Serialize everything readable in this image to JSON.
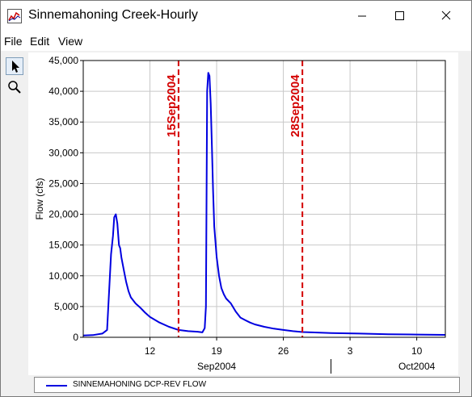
{
  "window": {
    "title": "Sinnemahoning Creek-Hourly",
    "menu": [
      "File",
      "Edit",
      "View"
    ]
  },
  "toolbar": {
    "tools": [
      "pointer-icon",
      "zoom-icon"
    ]
  },
  "legend": {
    "label": "SINNEMAHONING DCP-REV FLOW"
  },
  "chart_data": {
    "type": "line",
    "ylabel": "Flow (cfs)",
    "ylim": [
      0,
      45000
    ],
    "yticks": [
      0,
      5000,
      10000,
      15000,
      20000,
      25000,
      30000,
      35000,
      40000,
      45000
    ],
    "ytick_labels": [
      "0",
      "5,000",
      "10,000",
      "15,000",
      "20,000",
      "25,000",
      "30,000",
      "35,000",
      "40,000",
      "45,000"
    ],
    "x_start": "2004-09-05",
    "x_end": "2004-10-13",
    "xticks": [
      {
        "date": "2004-09-12",
        "label": "12"
      },
      {
        "date": "2004-09-19",
        "label": "19"
      },
      {
        "date": "2004-09-26",
        "label": "26"
      },
      {
        "date": "2004-10-03",
        "label": "3"
      },
      {
        "date": "2004-10-10",
        "label": "10"
      }
    ],
    "period_labels": [
      {
        "date": "2004-09-19",
        "label": "Sep2004"
      },
      {
        "date": "2004-10-10",
        "label": "Oct2004"
      }
    ],
    "period_divider": "2004-10-01",
    "markers": [
      {
        "date": "2004-09-15",
        "label": "15Sep2004",
        "color": "#d40000"
      },
      {
        "date": "2004-09-28",
        "label": "28Sep2004",
        "color": "#d40000"
      }
    ],
    "grid": true,
    "series": [
      {
        "name": "SINNEMAHONING DCP-REV FLOW",
        "color": "#0000e0",
        "x": [
          "2004-09-05 00:00",
          "2004-09-06 00:00",
          "2004-09-07 00:00",
          "2004-09-07 12:00",
          "2004-09-07 22:00",
          "2004-09-08 03:00",
          "2004-09-08 06:00",
          "2004-09-08 10:00",
          "2004-09-08 14:00",
          "2004-09-08 18:00",
          "2004-09-08 21:00",
          "2004-09-09 00:00",
          "2004-09-09 06:00",
          "2004-09-09 12:00",
          "2004-09-09 18:00",
          "2004-09-10 00:00",
          "2004-09-10 12:00",
          "2004-09-11 00:00",
          "2004-09-11 12:00",
          "2004-09-12 00:00",
          "2004-09-13 00:00",
          "2004-09-14 00:00",
          "2004-09-15 00:00",
          "2004-09-16 00:00",
          "2004-09-17 00:00",
          "2004-09-17 12:00",
          "2004-09-17 18:00",
          "2004-09-17 21:00",
          "2004-09-18 00:00",
          "2004-09-18 03:00",
          "2004-09-18 06:00",
          "2004-09-18 09:00",
          "2004-09-18 12:00",
          "2004-09-18 15:00",
          "2004-09-18 18:00",
          "2004-09-19 00:00",
          "2004-09-19 06:00",
          "2004-09-19 12:00",
          "2004-09-19 18:00",
          "2004-09-20 00:00",
          "2004-09-20 12:00",
          "2004-09-21 00:00",
          "2004-09-21 12:00",
          "2004-09-22 00:00",
          "2004-09-22 12:00",
          "2004-09-23 00:00",
          "2004-09-24 00:00",
          "2004-09-25 00:00",
          "2004-09-26 00:00",
          "2004-09-27 00:00",
          "2004-09-28 00:00",
          "2004-09-29 00:00",
          "2004-10-01 00:00",
          "2004-10-04 00:00",
          "2004-10-07 00:00",
          "2004-10-10 00:00",
          "2004-10-13 00:00"
        ],
        "y": [
          300,
          350,
          600,
          1200,
          13500,
          16500,
          19500,
          20000,
          18500,
          15000,
          14500,
          13000,
          11000,
          9000,
          7500,
          6500,
          5500,
          4800,
          4000,
          3300,
          2400,
          1700,
          1200,
          1000,
          900,
          800,
          1500,
          5000,
          40000,
          43000,
          42500,
          38000,
          31000,
          24000,
          18000,
          13000,
          10000,
          8000,
          7000,
          6300,
          5500,
          4200,
          3200,
          2800,
          2400,
          2100,
          1700,
          1400,
          1200,
          1000,
          850,
          800,
          700,
          600,
          500,
          450,
          400
        ]
      }
    ]
  }
}
